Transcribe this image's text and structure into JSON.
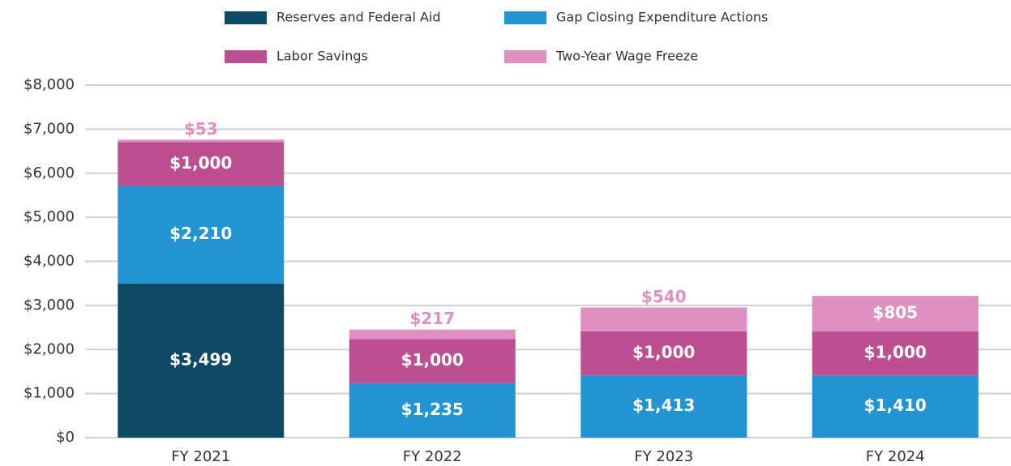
{
  "chart_data": {
    "type": "stacked_bar",
    "categories": [
      "FY 2021",
      "FY 2022",
      "FY 2023",
      "FY 2024"
    ],
    "series": [
      {
        "name": "Reserves and Federal Aid",
        "color": "#0e4a63",
        "values": [
          3499,
          null,
          null,
          null
        ],
        "value_labels": [
          "$3,499",
          null,
          null,
          null
        ]
      },
      {
        "name": "Gap Closing Expenditure Actions",
        "color": "#2394d2",
        "values": [
          2210,
          1235,
          1413,
          1410
        ],
        "value_labels": [
          "$2,210",
          "$1,235",
          "$1,413",
          "$1,410"
        ]
      },
      {
        "name": "Labor Savings",
        "color": "#bb4f92",
        "values": [
          1000,
          1000,
          1000,
          1000
        ],
        "value_labels": [
          "$1,000",
          "$1,000",
          "$1,000",
          "$1,000"
        ]
      },
      {
        "name": "Two-Year Wage Freeze",
        "color": "#e08fc2",
        "values": [
          53,
          217,
          540,
          805
        ],
        "value_labels": [
          "$53",
          "$217",
          "$540",
          "$805"
        ]
      }
    ],
    "ylim": [
      0,
      8000
    ],
    "yticks": [
      {
        "value": 0,
        "label": "$0"
      },
      {
        "value": 1000,
        "label": "$1,000"
      },
      {
        "value": 2000,
        "label": "$2,000"
      },
      {
        "value": 3000,
        "label": "$3,000"
      },
      {
        "value": 4000,
        "label": "$4,000"
      },
      {
        "value": 5000,
        "label": "$5,000"
      },
      {
        "value": 6000,
        "label": "$6,000"
      },
      {
        "value": 7000,
        "label": "$7,000"
      },
      {
        "value": 8000,
        "label": "$8,000"
      }
    ],
    "grid": true,
    "legend": "top"
  }
}
